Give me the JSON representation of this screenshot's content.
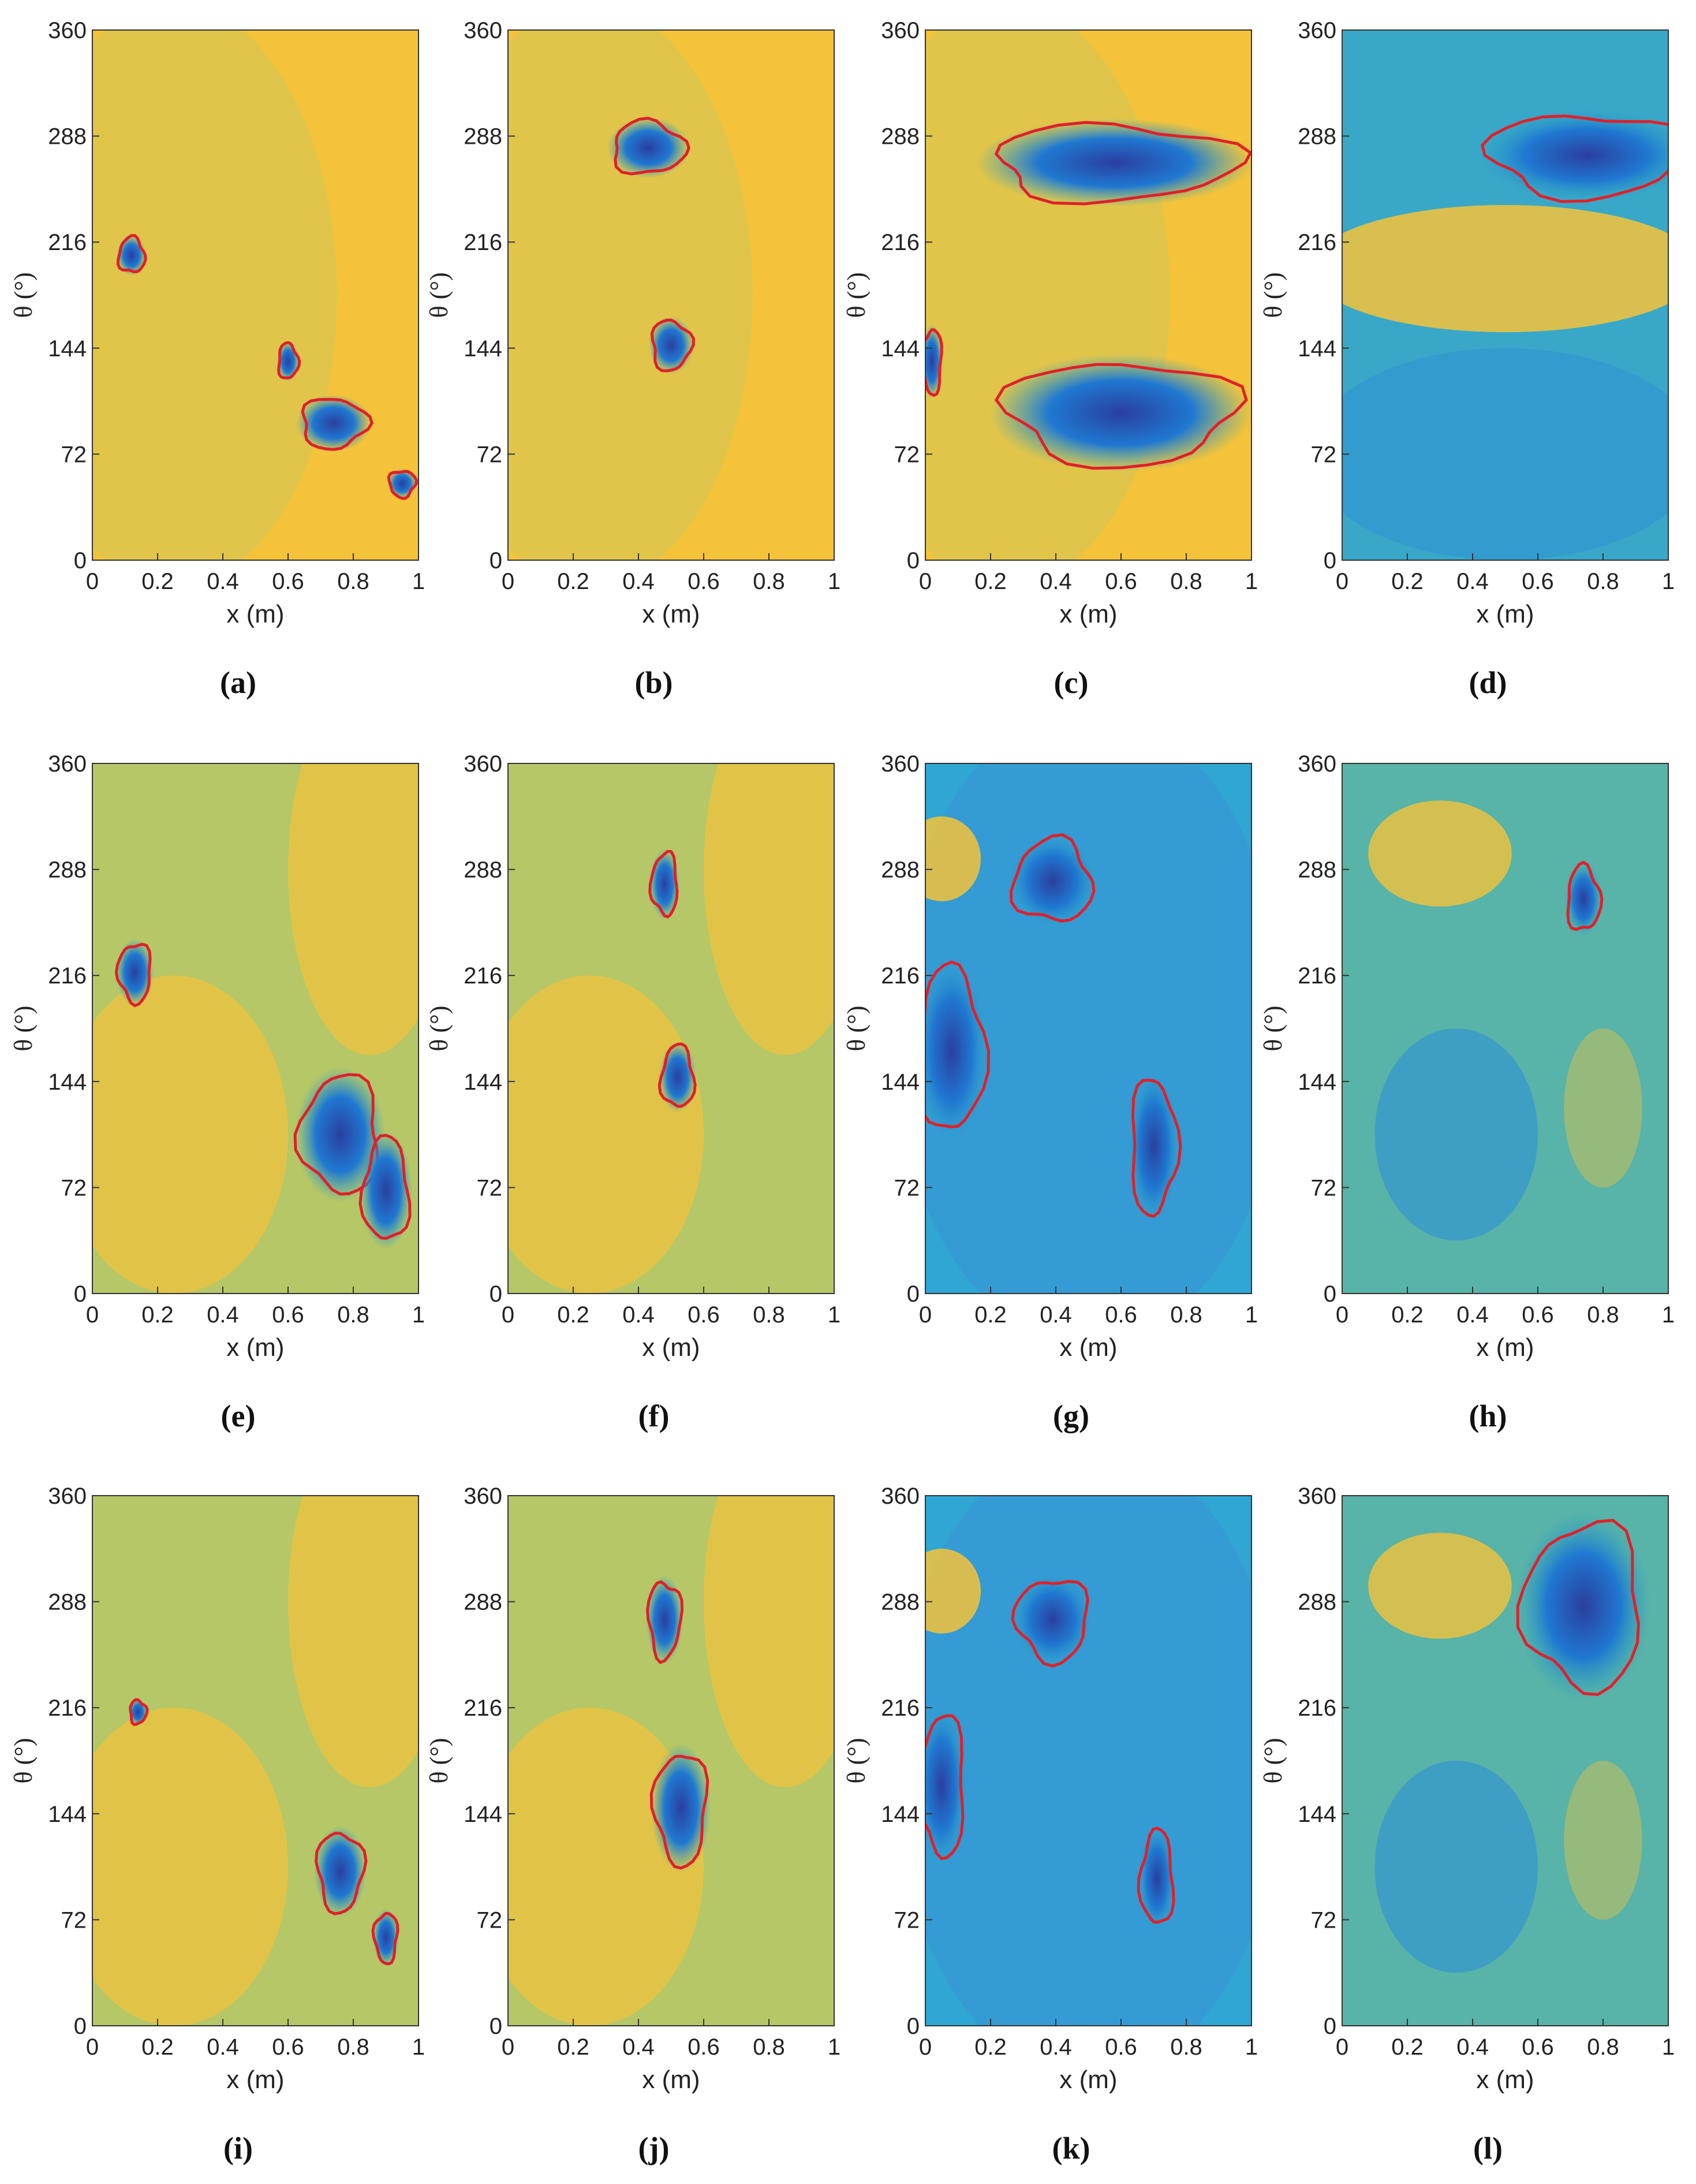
{
  "figure": {
    "colors": {
      "yellow": "#f4c33a",
      "green": "#7fbf7a",
      "teal": "#2fa6c4",
      "blue": "#1f78d1",
      "dark_blue": "#2a3fa0",
      "contour": "#e0202a"
    }
  },
  "chart_data": [
    {
      "id": "a",
      "type": "heatmap",
      "caption": "(a)",
      "xlabel": "x (m)",
      "ylabel": "θ (°)",
      "xlim": [
        0,
        1
      ],
      "ylim": [
        0,
        360
      ],
      "x_ticks": [
        "0",
        "0.2",
        "0.4",
        "0.6",
        "0.8",
        "1"
      ],
      "y_ticks": [
        "0",
        "72",
        "144",
        "216",
        "288",
        "360"
      ],
      "background": "yellow-dominant",
      "colormap": "parula",
      "contour_color": "#e0202a",
      "regions": [
        {
          "x": 0.12,
          "theta": 207,
          "rx": 0.04,
          "rtheta": 12,
          "contour": true
        },
        {
          "x": 0.6,
          "theta": 135,
          "rx": 0.03,
          "rtheta": 12,
          "contour": true
        },
        {
          "x": 0.74,
          "theta": 93,
          "rx": 0.1,
          "rtheta": 17,
          "contour": true
        },
        {
          "x": 0.95,
          "theta": 52,
          "rx": 0.04,
          "rtheta": 9,
          "contour": true
        }
      ]
    },
    {
      "id": "b",
      "type": "heatmap",
      "caption": "(b)",
      "xlabel": "x (m)",
      "ylabel": "θ (°)",
      "xlim": [
        0,
        1
      ],
      "ylim": [
        0,
        360
      ],
      "x_ticks": [
        "0",
        "0.2",
        "0.4",
        "0.6",
        "0.8",
        "1"
      ],
      "y_ticks": [
        "0",
        "72",
        "144",
        "216",
        "288",
        "360"
      ],
      "background": "yellow-dominant",
      "colormap": "parula",
      "contour_color": "#e0202a",
      "regions": [
        {
          "x": 0.43,
          "theta": 280,
          "rx": 0.11,
          "rtheta": 18,
          "contour": true
        },
        {
          "x": 0.5,
          "theta": 146,
          "rx": 0.06,
          "rtheta": 17,
          "contour": true
        }
      ]
    },
    {
      "id": "c",
      "type": "heatmap",
      "caption": "(c)",
      "xlabel": "x (m)",
      "ylabel": "θ (°)",
      "xlim": [
        0,
        1
      ],
      "ylim": [
        0,
        360
      ],
      "x_ticks": [
        "0",
        "0.2",
        "0.4",
        "0.6",
        "0.8",
        "1"
      ],
      "y_ticks": [
        "0",
        "72",
        "144",
        "216",
        "288",
        "360"
      ],
      "background": "yellow-dominant",
      "colormap": "parula",
      "contour_color": "#e0202a",
      "regions": [
        {
          "x": 0.58,
          "theta": 270,
          "rx": 0.37,
          "rtheta": 26,
          "contour": true
        },
        {
          "x": 0.6,
          "theta": 100,
          "rx": 0.35,
          "rtheta": 35,
          "contour": true
        },
        {
          "x": 0.02,
          "theta": 135,
          "rx": 0.03,
          "rtheta": 22,
          "contour": true
        }
      ]
    },
    {
      "id": "d",
      "type": "heatmap",
      "caption": "(d)",
      "xlabel": "x (m)",
      "ylabel": "θ (°)",
      "xlim": [
        0,
        1
      ],
      "ylim": [
        0,
        360
      ],
      "x_ticks": [
        "0",
        "0.2",
        "0.4",
        "0.6",
        "0.8",
        "1"
      ],
      "y_ticks": [
        "0",
        "72",
        "144",
        "216",
        "288",
        "360"
      ],
      "background": "blue-dominant",
      "colormap": "parula",
      "contour_color": "#e0202a",
      "regions": [
        {
          "x": 0.75,
          "theta": 275,
          "rx": 0.3,
          "rtheta": 28,
          "contour": true
        }
      ]
    },
    {
      "id": "e",
      "type": "heatmap",
      "caption": "(e)",
      "xlabel": "x (m)",
      "ylabel": "θ (°)",
      "xlim": [
        0,
        1
      ],
      "ylim": [
        0,
        360
      ],
      "x_ticks": [
        "0",
        "0.2",
        "0.4",
        "0.6",
        "0.8",
        "1"
      ],
      "y_ticks": [
        "0",
        "72",
        "144",
        "216",
        "288",
        "360"
      ],
      "background": "smooth yellow-green",
      "colormap": "parula",
      "contour_color": "#e0202a",
      "regions": [
        {
          "x": 0.13,
          "theta": 218,
          "rx": 0.05,
          "rtheta": 20,
          "contour": true
        },
        {
          "x": 0.76,
          "theta": 108,
          "rx": 0.12,
          "rtheta": 40,
          "contour": true
        },
        {
          "x": 0.9,
          "theta": 70,
          "rx": 0.07,
          "rtheta": 35,
          "contour": true
        }
      ]
    },
    {
      "id": "f",
      "type": "heatmap",
      "caption": "(f)",
      "xlabel": "x (m)",
      "ylabel": "θ (°)",
      "xlim": [
        0,
        1
      ],
      "ylim": [
        0,
        360
      ],
      "x_ticks": [
        "0",
        "0.2",
        "0.4",
        "0.6",
        "0.8",
        "1"
      ],
      "y_ticks": [
        "0",
        "72",
        "144",
        "216",
        "288",
        "360"
      ],
      "background": "smooth yellow-green",
      "colormap": "parula",
      "contour_color": "#e0202a",
      "regions": [
        {
          "x": 0.48,
          "theta": 278,
          "rx": 0.04,
          "rtheta": 21,
          "contour": true
        },
        {
          "x": 0.52,
          "theta": 147,
          "rx": 0.05,
          "rtheta": 21,
          "contour": true
        }
      ]
    },
    {
      "id": "g",
      "type": "heatmap",
      "caption": "(g)",
      "xlabel": "x (m)",
      "ylabel": "θ (°)",
      "xlim": [
        0,
        1
      ],
      "ylim": [
        0,
        360
      ],
      "x_ticks": [
        "0",
        "0.2",
        "0.4",
        "0.6",
        "0.8",
        "1"
      ],
      "y_ticks": [
        "0",
        "72",
        "144",
        "216",
        "288",
        "360"
      ],
      "background": "smooth blue",
      "colormap": "parula",
      "contour_color": "#e0202a",
      "regions": [
        {
          "x": 0.39,
          "theta": 280,
          "rx": 0.12,
          "rtheta": 28,
          "contour": true
        },
        {
          "x": 0.08,
          "theta": 165,
          "rx": 0.1,
          "rtheta": 56,
          "contour": true
        },
        {
          "x": 0.7,
          "theta": 100,
          "rx": 0.07,
          "rtheta": 46,
          "contour": true
        }
      ]
    },
    {
      "id": "h",
      "type": "heatmap",
      "caption": "(h)",
      "xlabel": "x (m)",
      "ylabel": "θ (°)",
      "xlim": [
        0,
        1
      ],
      "ylim": [
        0,
        360
      ],
      "x_ticks": [
        "0",
        "0.2",
        "0.4",
        "0.6",
        "0.8",
        "1"
      ],
      "y_ticks": [
        "0",
        "72",
        "144",
        "216",
        "288",
        "360"
      ],
      "background": "smooth green-blue",
      "colormap": "parula",
      "contour_color": "#e0202a",
      "regions": [
        {
          "x": 0.74,
          "theta": 268,
          "rx": 0.05,
          "rtheta": 22,
          "contour": true
        }
      ]
    },
    {
      "id": "i",
      "type": "heatmap",
      "caption": "(i)",
      "xlabel": "x (m)",
      "ylabel": "θ (°)",
      "xlim": [
        0,
        1
      ],
      "ylim": [
        0,
        360
      ],
      "x_ticks": [
        "0",
        "0.2",
        "0.4",
        "0.6",
        "0.8",
        "1"
      ],
      "y_ticks": [
        "0",
        "72",
        "144",
        "216",
        "288",
        "360"
      ],
      "background": "smooth yellow-green",
      "colormap": "parula",
      "contour_color": "#e0202a",
      "regions": [
        {
          "x": 0.14,
          "theta": 213,
          "rx": 0.025,
          "rtheta": 8,
          "contour": true
        },
        {
          "x": 0.76,
          "theta": 105,
          "rx": 0.07,
          "rtheta": 27,
          "contour": true
        },
        {
          "x": 0.9,
          "theta": 60,
          "rx": 0.035,
          "rtheta": 17,
          "contour": true
        }
      ]
    },
    {
      "id": "j",
      "type": "heatmap",
      "caption": "(j)",
      "xlabel": "x (m)",
      "ylabel": "θ (°)",
      "xlim": [
        0,
        1
      ],
      "ylim": [
        0,
        360
      ],
      "x_ticks": [
        "0",
        "0.2",
        "0.4",
        "0.6",
        "0.8",
        "1"
      ],
      "y_ticks": [
        "0",
        "72",
        "144",
        "216",
        "288",
        "360"
      ],
      "background": "smooth yellow-green",
      "colormap": "parula",
      "contour_color": "#e0202a",
      "regions": [
        {
          "x": 0.48,
          "theta": 276,
          "rx": 0.05,
          "rtheta": 26,
          "contour": true
        },
        {
          "x": 0.53,
          "theta": 148,
          "rx": 0.08,
          "rtheta": 38,
          "contour": true
        }
      ]
    },
    {
      "id": "k",
      "type": "heatmap",
      "caption": "(k)",
      "xlabel": "x (m)",
      "ylabel": "θ (°)",
      "xlim": [
        0,
        1
      ],
      "ylim": [
        0,
        360
      ],
      "x_ticks": [
        "0",
        "0.2",
        "0.4",
        "0.6",
        "0.8",
        "1"
      ],
      "y_ticks": [
        "0",
        "72",
        "144",
        "216",
        "288",
        "360"
      ],
      "background": "smooth blue",
      "colormap": "parula",
      "contour_color": "#e0202a",
      "regions": [
        {
          "x": 0.39,
          "theta": 276,
          "rx": 0.11,
          "rtheta": 28,
          "contour": true
        },
        {
          "x": 0.05,
          "theta": 163,
          "rx": 0.07,
          "rtheta": 48,
          "contour": true
        },
        {
          "x": 0.71,
          "theta": 100,
          "rx": 0.05,
          "rtheta": 32,
          "contour": true
        }
      ]
    },
    {
      "id": "l",
      "type": "heatmap",
      "caption": "(l)",
      "xlabel": "x (m)",
      "ylabel": "θ (°)",
      "xlim": [
        0,
        1
      ],
      "ylim": [
        0,
        360
      ],
      "x_ticks": [
        "0",
        "0.2",
        "0.4",
        "0.6",
        "0.8",
        "1"
      ],
      "y_ticks": [
        "0",
        "72",
        "144",
        "216",
        "288",
        "360"
      ],
      "background": "smooth green-blue",
      "colormap": "parula",
      "contour_color": "#e0202a",
      "regions": [
        {
          "x": 0.74,
          "theta": 285,
          "rx": 0.18,
          "rtheta": 56,
          "contour": true
        }
      ]
    }
  ]
}
